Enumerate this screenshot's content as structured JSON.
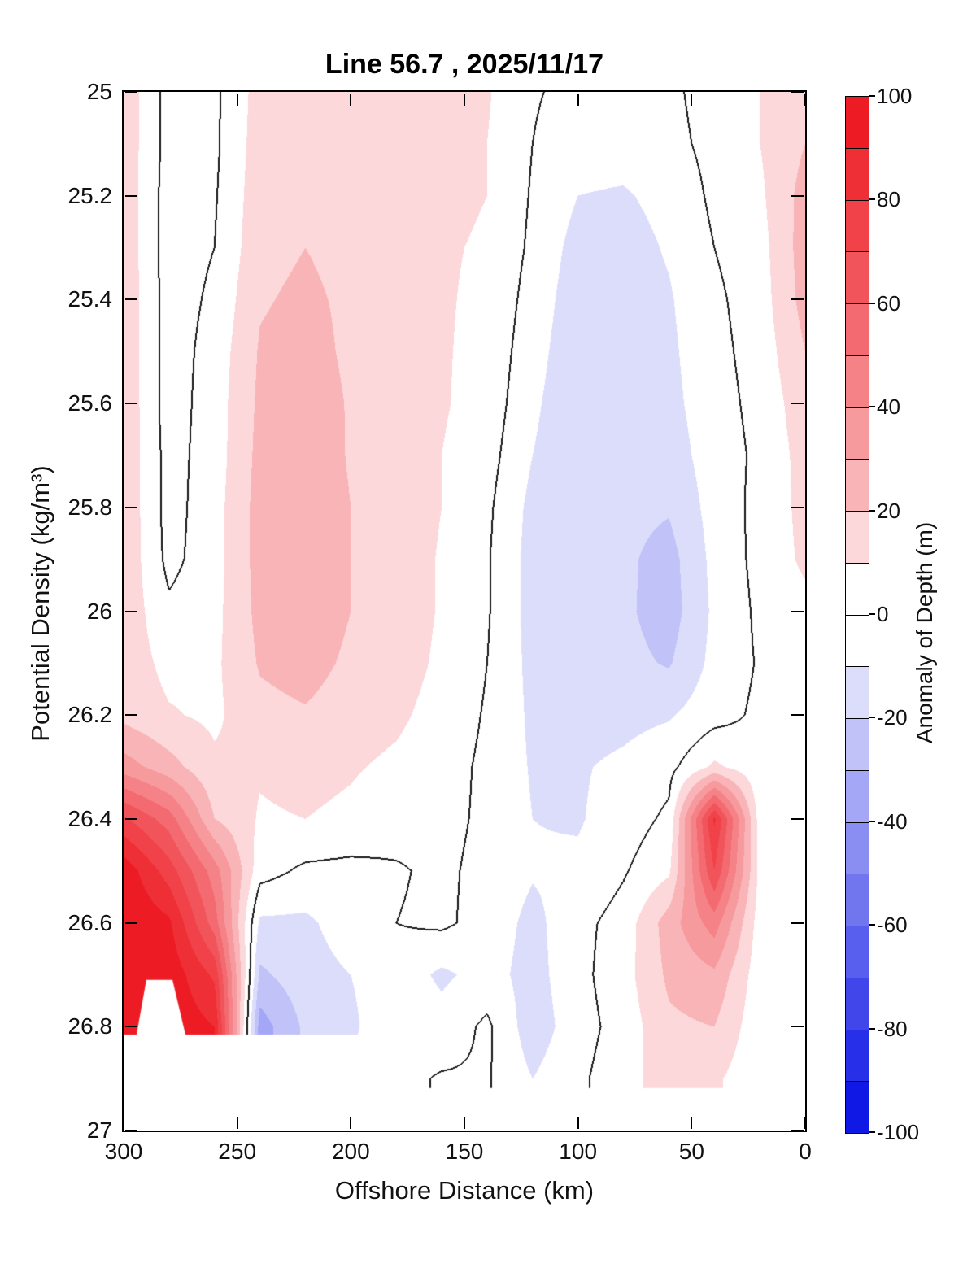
{
  "figure": {
    "title": "Line 56.7 , 2025/11/17"
  },
  "axes": {
    "xlabel": "Offshore Distance (km)",
    "ylabel": "Potential Density (kg/m³)",
    "x_range": [
      300,
      0
    ],
    "y_range": [
      25,
      27
    ],
    "x_ticks": [
      300,
      250,
      200,
      150,
      100,
      50,
      0
    ],
    "x_tick_labels": [
      "300",
      "250",
      "200",
      "150",
      "100",
      "50",
      "0"
    ],
    "y_ticks": [
      25,
      25.2,
      25.4,
      25.6,
      25.8,
      26,
      26.2,
      26.4,
      26.6,
      26.8,
      27
    ],
    "y_tick_labels": [
      "25",
      "25.2",
      "25.4",
      "25.6",
      "25.8",
      "26",
      "26.2",
      "26.4",
      "26.6",
      "26.8",
      "27"
    ]
  },
  "colorbar": {
    "label": "Anomaly of Depth (m)",
    "range": [
      -100,
      100
    ],
    "tick_values": [
      100,
      80,
      60,
      40,
      20,
      0,
      -20,
      -40,
      -60,
      -80,
      -100
    ],
    "tick_labels": [
      "100",
      "80",
      "60",
      "40",
      "20",
      "0",
      "-20",
      "-40",
      "-60",
      "-80",
      "-100"
    ]
  },
  "chart_data": {
    "type": "filled_contour",
    "title": "Line 56.7 , 2025/11/17",
    "xlabel": "Offshore Distance (km)",
    "ylabel": "Potential Density (kg/m³)",
    "value_label": "Anomaly of Depth (m)",
    "x_range": [
      300,
      0
    ],
    "y_range": [
      25,
      27
    ],
    "levels": [
      -100,
      -90,
      -80,
      -70,
      -60,
      -50,
      -40,
      -30,
      -20,
      -10,
      0,
      10,
      20,
      30,
      40,
      50,
      60,
      70,
      80,
      90,
      100
    ],
    "colors": [
      "#1018E6",
      "#282FE8",
      "#4046EA",
      "#585EED",
      "#7176EF",
      "#8A8EF2",
      "#A4A7F5",
      "#C0C2F8",
      "#DCDDFB",
      "#FFFFFF",
      "#FFFFFF",
      "#FCD8DA",
      "#F9B4B8",
      "#F79A9E",
      "#F58287",
      "#F36A70",
      "#F1555B",
      "#F04248",
      "#EE2F36",
      "#ED1C24"
    ],
    "contour_line": {
      "level": 0,
      "color": "#1a1a1a"
    },
    "grid": {
      "x_km": [
        300,
        280,
        260,
        240,
        220,
        200,
        180,
        160,
        140,
        120,
        100,
        80,
        60,
        40,
        20,
        0
      ],
      "sigma_theta": [
        25.0,
        25.1,
        25.2,
        25.3,
        25.4,
        25.5,
        25.6,
        25.7,
        25.8,
        25.9,
        26.0,
        26.1,
        26.2,
        26.3,
        26.4,
        26.5,
        26.6,
        26.7,
        26.8,
        26.9,
        27.0
      ],
      "anomaly_m": [
        [
          17,
          -4,
          -2,
          14,
          16,
          15,
          14,
          13,
          11,
          1,
          -3,
          -3,
          -2,
          4,
          10,
          16
        ],
        [
          17,
          -4,
          -2,
          15,
          17,
          16,
          14,
          12,
          10,
          0,
          -6,
          -6,
          -3,
          3,
          10,
          20
        ],
        [
          17,
          -5,
          -1,
          16,
          18,
          16,
          14,
          12,
          10,
          -1,
          -10,
          -11,
          -7,
          2,
          8,
          24
        ],
        [
          17,
          -5,
          0,
          17,
          20,
          17,
          15,
          11,
          9,
          -2,
          -14,
          -14,
          -9,
          0,
          6,
          25
        ],
        [
          18,
          -5,
          2,
          19,
          22,
          18,
          15,
          11,
          8,
          -4,
          -16,
          -15,
          -11,
          -2,
          5,
          24
        ],
        [
          18,
          -5,
          4,
          21,
          24,
          18,
          15,
          11,
          7,
          -6,
          -17,
          -16,
          -12,
          -3,
          4,
          20
        ],
        [
          18,
          -5,
          5,
          22,
          26,
          19,
          15,
          11,
          6,
          -8,
          -18,
          -17,
          -13,
          -4,
          3,
          16
        ],
        [
          18,
          -4,
          5,
          23,
          27,
          19,
          15,
          10,
          4,
          -10,
          -18,
          -18,
          -15,
          -5,
          2,
          14
        ],
        [
          18,
          -4,
          6,
          24,
          28,
          20,
          16,
          10,
          2,
          -13,
          -18,
          -17,
          -19,
          -6,
          3,
          13
        ],
        [
          18,
          -3,
          6,
          24,
          28,
          20,
          16,
          9,
          1,
          -14,
          -18,
          -18,
          -24,
          -7,
          3,
          12
        ],
        [
          17,
          2,
          7,
          23,
          27,
          20,
          16,
          9,
          1,
          -14,
          -17,
          -18,
          -25,
          -8,
          2,
          7
        ],
        [
          16,
          7,
          8,
          21,
          24,
          18,
          15,
          8,
          0,
          -13,
          -16,
          -17,
          -21,
          -7,
          1,
          6
        ],
        [
          17,
          11,
          8,
          17,
          19,
          15,
          12,
          6,
          -1,
          -12,
          -14,
          -13,
          -11,
          -4,
          2,
          5
        ],
        [
          35,
          24,
          12,
          11,
          13,
          11,
          8,
          4,
          -2,
          -11,
          -11,
          -8,
          -3,
          12,
          3,
          4
        ],
        [
          72,
          55,
          20,
          9,
          10,
          8,
          4,
          3,
          -2,
          -10,
          -11,
          -5,
          2,
          82,
          5,
          3
        ],
        [
          97,
          75,
          45,
          4,
          -2,
          -3,
          -1,
          2,
          -3,
          -9,
          -8,
          -1,
          8,
          70,
          7,
          3
        ],
        [
          100,
          92,
          55,
          -12,
          -12,
          -5,
          0,
          2,
          -4,
          -13,
          -3,
          4,
          25,
          45,
          5,
          2
        ],
        [
          100,
          97,
          78,
          -22,
          -14,
          -10,
          -4,
          -12,
          -6,
          -14,
          -3,
          6,
          22,
          28,
          4,
          2
        ],
        [
          100,
          98,
          90,
          -35,
          -18,
          -12,
          -2,
          -6,
          2,
          -16,
          -4,
          4,
          18,
          20,
          3,
          1
        ],
        [
          100,
          98,
          90,
          -35,
          -18,
          -8,
          -3,
          1,
          1,
          -10,
          -2,
          6,
          15,
          12,
          2,
          1
        ],
        [
          100,
          98,
          90,
          -35,
          -18,
          -8,
          -3,
          1,
          1,
          -10,
          -2,
          6,
          15,
          12,
          2,
          1
        ]
      ]
    },
    "masks": [
      {
        "name": "bottom-left-data-gap",
        "polygon_km_sigma": [
          [
            300,
            26.815
          ],
          [
            191.5,
            26.815
          ],
          [
            191.5,
            27.02
          ],
          [
            300,
            27.02
          ]
        ]
      },
      {
        "name": "bottom-data-gap",
        "polygon_km_sigma": [
          [
            300,
            26.918
          ],
          [
            0,
            26.918
          ],
          [
            0,
            27.02
          ],
          [
            300,
            27.02
          ]
        ]
      },
      {
        "name": "red-blob-notch",
        "polygon_km_sigma": [
          [
            290,
            26.71
          ],
          [
            278.5,
            26.71
          ],
          [
            272.8,
            26.815
          ],
          [
            294.3,
            26.815
          ]
        ]
      }
    ]
  }
}
